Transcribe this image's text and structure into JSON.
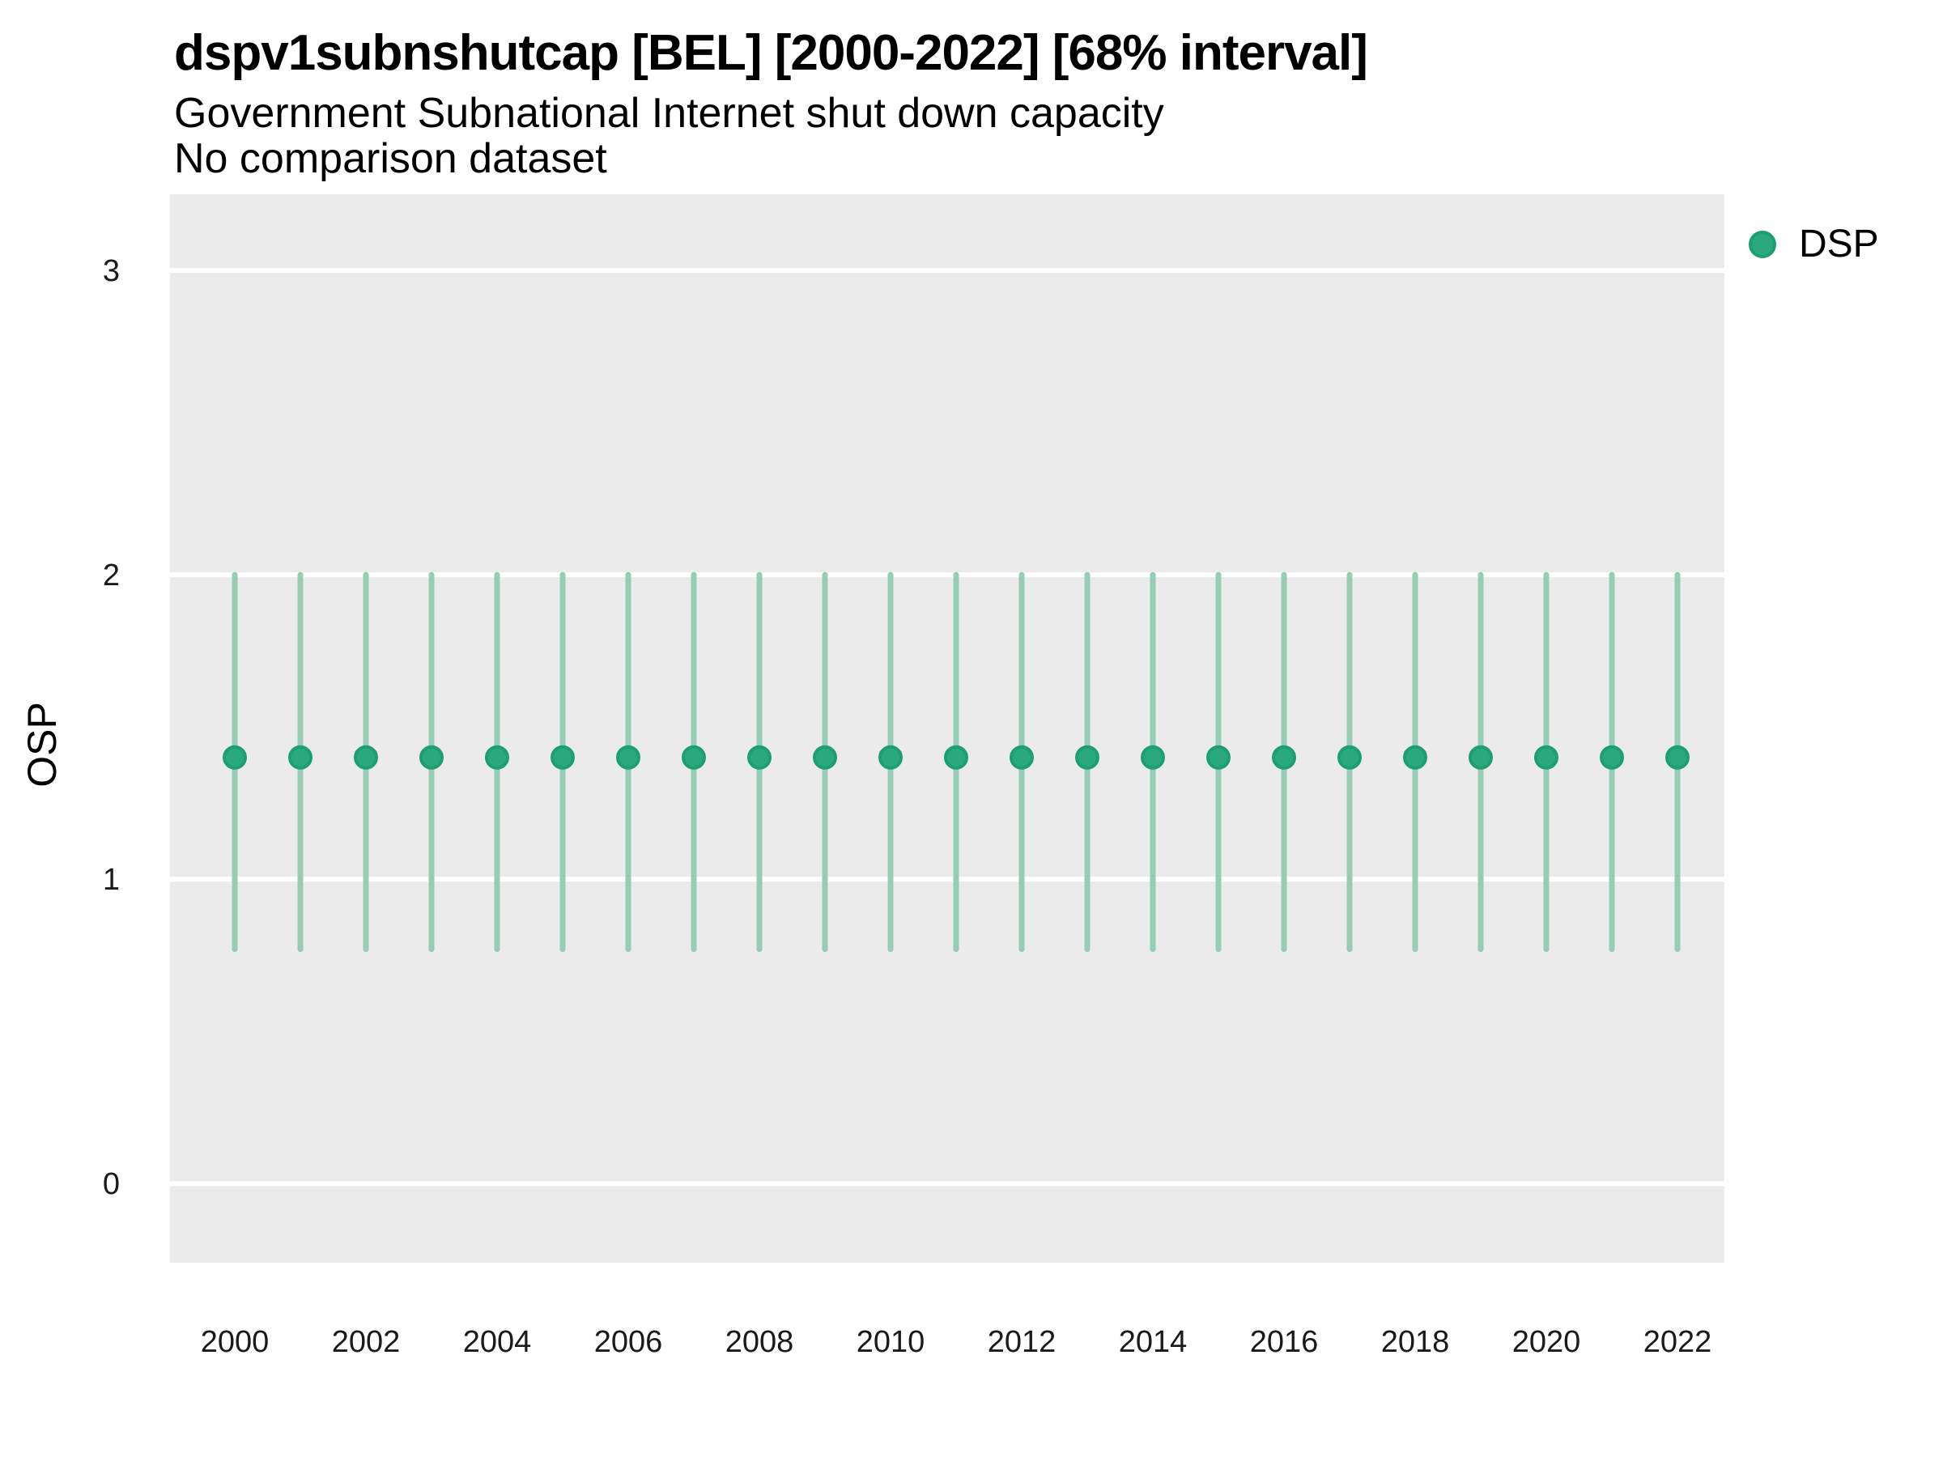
{
  "figure": {
    "title": "dspv1subnshutcap [BEL] [2000-2022] [68% interval]",
    "subtitle": "Government Subnational Internet shut down capacity",
    "note": "No comparison dataset"
  },
  "axes": {
    "ylabel": "OSP"
  },
  "legend": {
    "items": [
      {
        "label": "DSP",
        "color": "#2BA97E",
        "stroke": "#1E9E73"
      }
    ]
  },
  "chart_data": {
    "type": "scatter",
    "variant": "pointrange",
    "title": "dspv1subnshutcap [BEL] [2000-2022] [68% interval]",
    "subtitle": "Government Subnational Internet shut down capacity",
    "note": "No comparison dataset",
    "interval_label": "68% interval",
    "country": "BEL",
    "xlabel": "",
    "ylabel": "OSP",
    "x": [
      2000,
      2001,
      2002,
      2003,
      2004,
      2005,
      2006,
      2007,
      2008,
      2009,
      2010,
      2011,
      2012,
      2013,
      2014,
      2015,
      2016,
      2017,
      2018,
      2019,
      2020,
      2021,
      2022
    ],
    "series": [
      {
        "name": "DSP",
        "median": [
          1.4,
          1.4,
          1.4,
          1.4,
          1.4,
          1.4,
          1.4,
          1.4,
          1.4,
          1.4,
          1.4,
          1.4,
          1.4,
          1.4,
          1.4,
          1.4,
          1.4,
          1.4,
          1.4,
          1.4,
          1.4,
          1.4,
          1.4
        ],
        "lower_68": [
          0.77,
          0.77,
          0.77,
          0.77,
          0.77,
          0.77,
          0.77,
          0.77,
          0.77,
          0.77,
          0.77,
          0.77,
          0.77,
          0.77,
          0.77,
          0.77,
          0.77,
          0.77,
          0.77,
          0.77,
          0.77,
          0.77,
          0.77
        ],
        "upper_68": [
          2.0,
          2.0,
          2.0,
          2.0,
          2.0,
          2.0,
          2.0,
          2.0,
          2.0,
          2.0,
          2.0,
          2.0,
          2.0,
          2.0,
          2.0,
          2.0,
          2.0,
          2.0,
          2.0,
          2.0,
          2.0,
          2.0,
          2.0
        ]
      }
    ],
    "yticks": [
      0,
      1,
      2,
      3
    ],
    "xticks": [
      2000,
      2002,
      2004,
      2006,
      2008,
      2010,
      2012,
      2014,
      2016,
      2018,
      2020,
      2022
    ],
    "ylim": [
      -0.26,
      3.25
    ],
    "grid": "horizontal-major-only",
    "legend_position": "right-top",
    "panel_bg": "#EBEBEB",
    "gridline_color": "#FFFFFF",
    "point_color": "#2BA97E",
    "point_stroke": "#1E9E73",
    "interval_color": "#95CDB5",
    "tick_label_color": "#1A1A1A"
  }
}
